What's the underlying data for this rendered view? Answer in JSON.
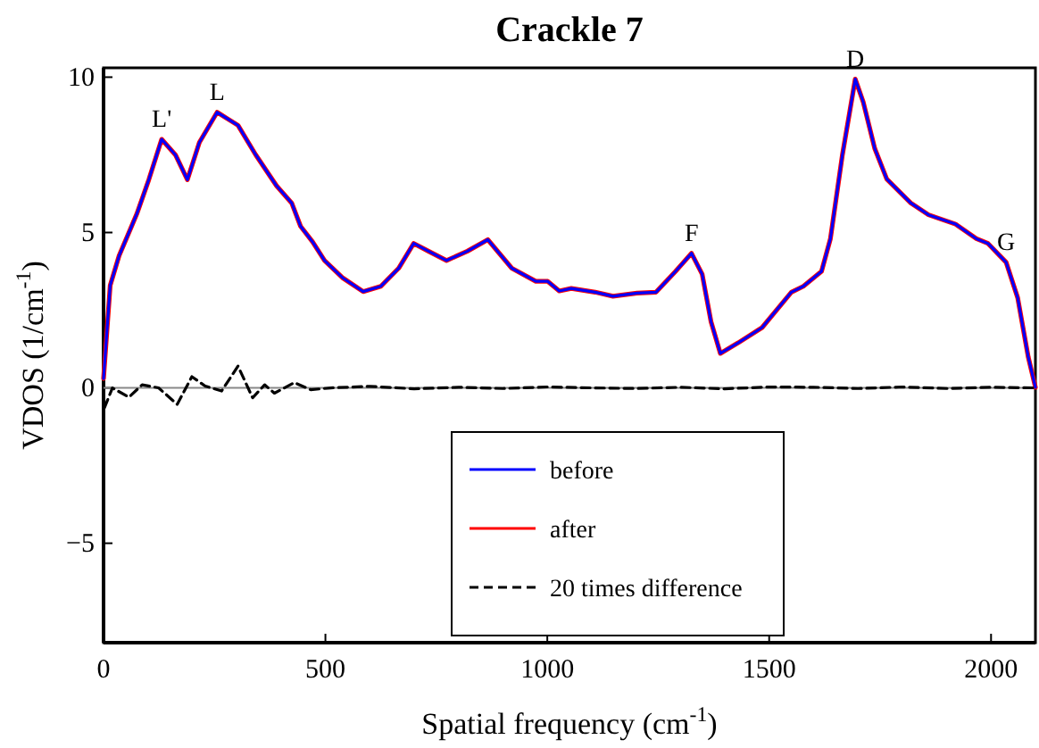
{
  "chart_data": {
    "type": "line",
    "title": "Crackle 7",
    "xlabel": "Spatial frequency (cm$^{-1}$)",
    "ylabel": "VDOS (1/cm$^{-1}$)",
    "xlim": [
      0,
      2100
    ],
    "ylim": [
      -8.2,
      10.3
    ],
    "xticks": [
      0,
      500,
      1000,
      1500,
      2000
    ],
    "yticks": [
      -5,
      0,
      5,
      10
    ],
    "grid": false,
    "legend": "bottom",
    "line_style": "solid",
    "marker": "none",
    "ref_lines": [
      {
        "axis": "y",
        "value": 0,
        "color": "#888888"
      }
    ],
    "annotations": [
      {
        "text": "L'",
        "x": 131,
        "y": 8.0
      },
      {
        "text": "L",
        "x": 256,
        "y": 8.87
      },
      {
        "text": "F",
        "x": 1325,
        "y": 4.33
      },
      {
        "text": "D",
        "x": 1694,
        "y": 9.94
      },
      {
        "text": "G",
        "x": 2034,
        "y": 4.04
      }
    ],
    "series": [
      {
        "name": "after",
        "color": "#ff0000",
        "x": [
          0,
          15,
          35,
          75,
          102,
          131,
          162,
          189,
          216,
          256,
          303,
          343,
          390,
          424,
          444,
          471,
          498,
          538,
          585,
          625,
          665,
          699,
          732,
          773,
          820,
          866,
          920,
          974,
          1001,
          1027,
          1054,
          1108,
          1148,
          1202,
          1245,
          1289,
          1325,
          1349,
          1369,
          1390,
          1430,
          1484,
          1550,
          1577,
          1618,
          1638,
          1665,
          1694,
          1712,
          1738,
          1765,
          1819,
          1859,
          1920,
          1967,
          1993,
          2034,
          2060,
          2084,
          2100
        ],
        "values": [
          0.3,
          3.3,
          4.25,
          5.6,
          6.7,
          8.0,
          7.5,
          6.7,
          7.9,
          8.87,
          8.45,
          7.5,
          6.5,
          5.95,
          5.2,
          4.7,
          4.1,
          3.55,
          3.1,
          3.27,
          3.85,
          4.65,
          4.4,
          4.1,
          4.4,
          4.77,
          3.85,
          3.43,
          3.43,
          3.12,
          3.2,
          3.08,
          2.95,
          3.05,
          3.08,
          3.75,
          4.33,
          3.66,
          2.13,
          1.11,
          1.45,
          1.94,
          3.08,
          3.27,
          3.75,
          4.8,
          7.5,
          9.94,
          9.2,
          7.7,
          6.72,
          5.95,
          5.57,
          5.27,
          4.8,
          4.65,
          4.04,
          2.9,
          0.98,
          0.02
        ]
      },
      {
        "name": "before",
        "color": "#0000ff",
        "x": [
          0,
          15,
          35,
          75,
          102,
          131,
          162,
          189,
          216,
          256,
          303,
          343,
          390,
          424,
          444,
          471,
          498,
          538,
          585,
          625,
          665,
          699,
          732,
          773,
          820,
          866,
          920,
          974,
          1001,
          1027,
          1054,
          1108,
          1148,
          1202,
          1245,
          1289,
          1325,
          1349,
          1369,
          1390,
          1430,
          1484,
          1550,
          1577,
          1618,
          1638,
          1665,
          1694,
          1712,
          1738,
          1765,
          1819,
          1859,
          1920,
          1967,
          1993,
          2034,
          2060,
          2084,
          2100
        ],
        "values": [
          0.3,
          3.3,
          4.25,
          5.6,
          6.7,
          8.0,
          7.5,
          6.7,
          7.9,
          8.87,
          8.45,
          7.5,
          6.5,
          5.95,
          5.2,
          4.7,
          4.1,
          3.55,
          3.1,
          3.27,
          3.85,
          4.65,
          4.4,
          4.1,
          4.4,
          4.77,
          3.85,
          3.43,
          3.43,
          3.12,
          3.2,
          3.08,
          2.95,
          3.05,
          3.08,
          3.75,
          4.33,
          3.66,
          2.13,
          1.11,
          1.45,
          1.94,
          3.08,
          3.27,
          3.75,
          4.8,
          7.5,
          9.94,
          9.2,
          7.7,
          6.72,
          5.95,
          5.57,
          5.27,
          4.8,
          4.65,
          4.04,
          2.9,
          0.98,
          0.02
        ]
      },
      {
        "name": "20 times difference",
        "color": "#000000",
        "line_style": "dashed",
        "x": [
          2,
          20,
          57,
          87,
          124,
          166,
          199,
          229,
          266,
          303,
          336,
          363,
          385,
          430,
          467,
          512,
          600,
          700,
          800,
          900,
          1000,
          1100,
          1200,
          1300,
          1400,
          1500,
          1600,
          1700,
          1800,
          1900,
          2000,
          2100
        ],
        "values": [
          -0.64,
          0,
          -0.3,
          0.1,
          0,
          -0.53,
          0.36,
          0.06,
          -0.1,
          0.7,
          -0.32,
          0.1,
          -0.17,
          0.17,
          -0.06,
          0,
          0.05,
          -0.03,
          0.02,
          -0.02,
          0.03,
          0,
          -0.02,
          0.02,
          -0.03,
          0.03,
          0.02,
          -0.02,
          0.03,
          -0.02,
          0.02,
          0
        ]
      }
    ]
  }
}
